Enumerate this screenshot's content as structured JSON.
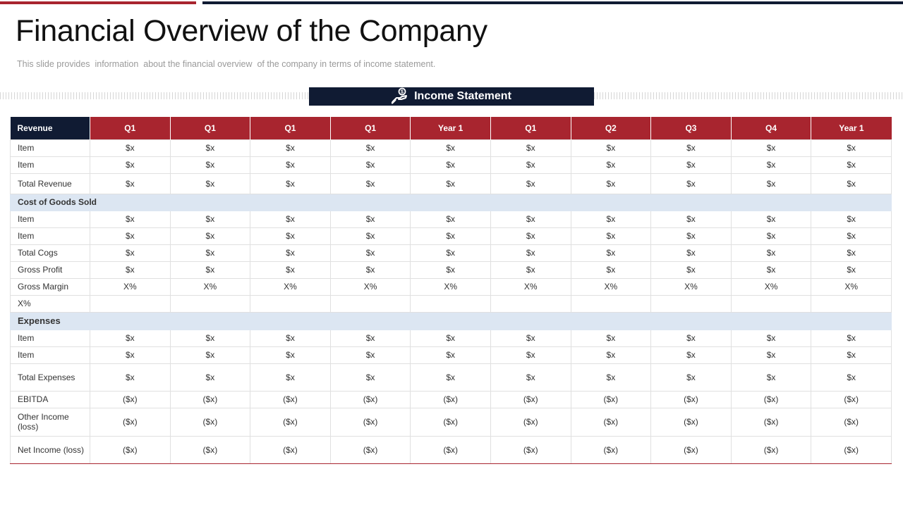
{
  "slide": {
    "title": "Financial Overview of the Company",
    "subtitle": "This slide provides  information  about the financial overview  of the company in terms of income statement."
  },
  "banner": {
    "label": "Income Statement",
    "icon": "money-hand-icon"
  },
  "colors": {
    "accent_red": "#a8252f",
    "navy": "#101b33",
    "section_fill": "#dce6f2"
  },
  "table": {
    "header_label": "Revenue",
    "periods": [
      "Q1",
      "Q1",
      "Q1",
      "Q1",
      "Year 1",
      "Q1",
      "Q2",
      "Q3",
      "Q4",
      "Year 1"
    ],
    "rows": [
      {
        "type": "data",
        "label": "Item",
        "values": [
          "$x",
          "$x",
          "$x",
          "$x",
          "$x",
          "$x",
          "$x",
          "$x",
          "$x",
          "$x"
        ]
      },
      {
        "type": "data",
        "label": "Item",
        "values": [
          "$x",
          "$x",
          "$x",
          "$x",
          "$x",
          "$x",
          "$x",
          "$x",
          "$x",
          "$x"
        ]
      },
      {
        "type": "data",
        "label": "Total Revenue",
        "values": [
          "$x",
          "$x",
          "$x",
          "$x",
          "$x",
          "$x",
          "$x",
          "$x",
          "$x",
          "$x"
        ]
      },
      {
        "type": "section",
        "label": "Cost of Goods  Sold"
      },
      {
        "type": "data",
        "label": "Item",
        "values": [
          "$x",
          "$x",
          "$x",
          "$x",
          "$x",
          "$x",
          "$x",
          "$x",
          "$x",
          "$x"
        ]
      },
      {
        "type": "data",
        "label": "Item",
        "values": [
          "$x",
          "$x",
          "$x",
          "$x",
          "$x",
          "$x",
          "$x",
          "$x",
          "$x",
          "$x"
        ]
      },
      {
        "type": "data",
        "label": "Total Cogs",
        "values": [
          "$x",
          "$x",
          "$x",
          "$x",
          "$x",
          "$x",
          "$x",
          "$x",
          "$x",
          "$x"
        ]
      },
      {
        "type": "data",
        "label": "Gross Profit",
        "values": [
          "$x",
          "$x",
          "$x",
          "$x",
          "$x",
          "$x",
          "$x",
          "$x",
          "$x",
          "$x"
        ]
      },
      {
        "type": "data",
        "label": "Gross Margin",
        "values": [
          "X%",
          "X%",
          "X%",
          "X%",
          "X%",
          "X%",
          "X%",
          "X%",
          "X%",
          "X%"
        ]
      },
      {
        "type": "data",
        "label": "X%",
        "values": [
          "",
          "",
          "",
          "",
          "",
          "",
          "",
          "",
          "",
          ""
        ]
      },
      {
        "type": "section",
        "label": "Expenses"
      },
      {
        "type": "data",
        "label": "Item",
        "values": [
          "$x",
          "$x",
          "$x",
          "$x",
          "$x",
          "$x",
          "$x",
          "$x",
          "$x",
          "$x"
        ]
      },
      {
        "type": "data",
        "label": "Item",
        "values": [
          "$x",
          "$x",
          "$x",
          "$x",
          "$x",
          "$x",
          "$x",
          "$x",
          "$x",
          "$x"
        ]
      },
      {
        "type": "data",
        "label": "Total Expenses",
        "values": [
          "$x",
          "$x",
          "$x",
          "$x",
          "$x",
          "$x",
          "$x",
          "$x",
          "$x",
          "$x"
        ]
      },
      {
        "type": "data",
        "label": "EBITDA",
        "values": [
          "($x)",
          "($x)",
          "($x)",
          "($x)",
          "($x)",
          "($x)",
          "($x)",
          "($x)",
          "($x)",
          "($x)"
        ]
      },
      {
        "type": "data",
        "label": "Other Income (loss)",
        "values": [
          "($x)",
          "($x)",
          "($x)",
          "($x)",
          "($x)",
          "($x)",
          "($x)",
          "($x)",
          "($x)",
          "($x)"
        ]
      },
      {
        "type": "data",
        "label": "Net Income (loss)",
        "values": [
          "($x)",
          "($x)",
          "($x)",
          "($x)",
          "($x)",
          "($x)",
          "($x)",
          "($x)",
          "($x)",
          "($x)"
        ]
      }
    ]
  }
}
